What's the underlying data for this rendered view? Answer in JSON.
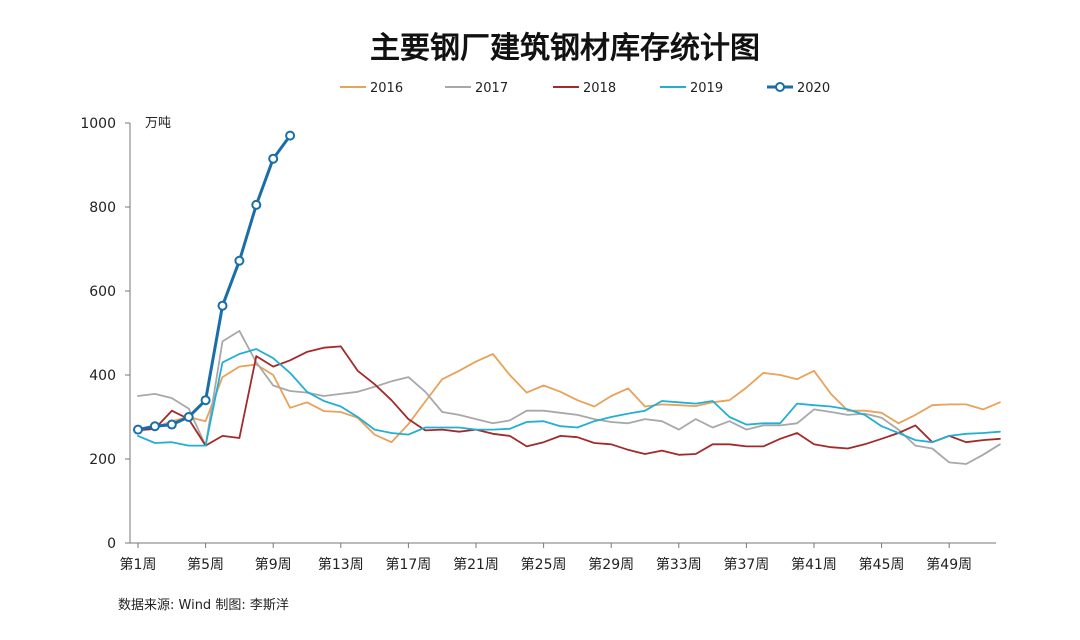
{
  "chart_data": {
    "type": "line",
    "title": "主要钢厂建筑钢材库存统计图",
    "ylabel": "万吨",
    "xlabel": "",
    "ylim": [
      0,
      1000
    ],
    "yticks": [
      0,
      200,
      400,
      600,
      800,
      1000
    ],
    "xlim": [
      1,
      52
    ],
    "xtick_weeks": [
      1,
      5,
      9,
      13,
      17,
      21,
      25,
      29,
      33,
      37,
      41,
      45,
      49
    ],
    "xtick_labels": [
      "第1周",
      "第5周",
      "第9周",
      "第13周",
      "第17周",
      "第21周",
      "第25周",
      "第29周",
      "第33周",
      "第37周",
      "第41周",
      "第45周",
      "第49周"
    ],
    "legend_position": "top",
    "source": "数据来源: Wind   制图: 李斯洋",
    "series": [
      {
        "name": "2016",
        "color": "#E8A25A",
        "markers": false,
        "values": [
          270,
          275,
          290,
          300,
          290,
          395,
          420,
          425,
          400,
          322,
          335,
          314,
          312,
          298,
          258,
          240,
          283,
          337,
          390,
          410,
          432,
          450,
          400,
          358,
          375,
          360,
          340,
          325,
          350,
          368,
          325,
          330,
          328,
          326,
          335,
          340,
          370,
          405,
          400,
          390,
          410,
          355,
          315,
          315,
          310,
          285,
          305,
          328,
          330,
          330,
          318,
          335
        ]
      },
      {
        "name": "2017",
        "color": "#A8A8A8",
        "markers": false,
        "values": [
          350,
          355,
          345,
          320,
          232,
          480,
          505,
          430,
          375,
          362,
          358,
          350,
          355,
          360,
          372,
          385,
          395,
          360,
          312,
          305,
          295,
          285,
          292,
          315,
          315,
          310,
          305,
          295,
          288,
          285,
          295,
          290,
          270,
          295,
          275,
          290,
          270,
          280,
          280,
          285,
          318,
          312,
          305,
          308,
          298,
          270,
          232,
          225,
          192,
          188,
          210,
          235
        ]
      },
      {
        "name": "2018",
        "color": "#A32A2A",
        "markers": false,
        "values": [
          268,
          272,
          315,
          295,
          232,
          255,
          250,
          445,
          420,
          435,
          455,
          465,
          468,
          410,
          378,
          340,
          295,
          268,
          270,
          265,
          270,
          260,
          255,
          230,
          240,
          255,
          252,
          238,
          235,
          222,
          212,
          220,
          210,
          212,
          235,
          235,
          230,
          230,
          248,
          262,
          235,
          228,
          225,
          235,
          248,
          262,
          280,
          240,
          255,
          240,
          245,
          248
        ]
      },
      {
        "name": "2019",
        "color": "#22AFD2",
        "markers": false,
        "values": [
          255,
          238,
          240,
          232,
          232,
          430,
          450,
          462,
          440,
          405,
          360,
          338,
          325,
          300,
          270,
          262,
          258,
          275,
          275,
          275,
          270,
          270,
          272,
          288,
          290,
          278,
          275,
          290,
          300,
          308,
          315,
          338,
          335,
          332,
          338,
          300,
          282,
          285,
          285,
          332,
          328,
          325,
          318,
          305,
          278,
          262,
          245,
          240,
          255,
          260,
          262,
          265
        ]
      },
      {
        "name": "2020",
        "color": "#1A6EA8",
        "markers": true,
        "values": [
          270,
          278,
          282,
          300,
          340,
          565,
          672,
          805,
          915,
          970
        ]
      }
    ]
  }
}
